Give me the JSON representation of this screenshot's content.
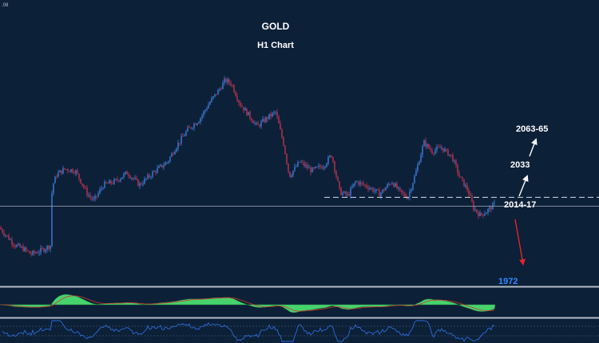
{
  "chart_data": {
    "type": "candlestick",
    "title": "GOLD",
    "subtitle": "H1 Chart",
    "corner_label": ".08",
    "ylim": [
      1960,
      2080
    ],
    "x_count": 310,
    "anchors": [
      [
        0,
        1990
      ],
      [
        12,
        1984
      ],
      [
        20,
        1980
      ],
      [
        30,
        1978
      ],
      [
        40,
        1975
      ],
      [
        52,
        1977
      ],
      [
        64,
        1980
      ],
      [
        66,
        2013
      ],
      [
        72,
        2020
      ],
      [
        82,
        2023
      ],
      [
        95,
        2022
      ],
      [
        110,
        2009
      ],
      [
        118,
        2005
      ],
      [
        130,
        2014
      ],
      [
        145,
        2016
      ],
      [
        160,
        2021
      ],
      [
        175,
        2014
      ],
      [
        195,
        2022
      ],
      [
        210,
        2027
      ],
      [
        220,
        2035
      ],
      [
        235,
        2045
      ],
      [
        250,
        2051
      ],
      [
        262,
        2060
      ],
      [
        275,
        2068
      ],
      [
        282,
        2073
      ],
      [
        290,
        2071
      ],
      [
        300,
        2060
      ],
      [
        312,
        2053
      ],
      [
        322,
        2047
      ],
      [
        335,
        2052
      ],
      [
        345,
        2055
      ],
      [
        355,
        2037
      ],
      [
        362,
        2019
      ],
      [
        375,
        2027
      ],
      [
        390,
        2022
      ],
      [
        405,
        2025
      ],
      [
        415,
        2031
      ],
      [
        425,
        2010
      ],
      [
        435,
        2008
      ],
      [
        445,
        2016
      ],
      [
        460,
        2013
      ],
      [
        475,
        2009
      ],
      [
        490,
        2016
      ],
      [
        500,
        2010
      ],
      [
        510,
        2007
      ],
      [
        520,
        2021
      ],
      [
        530,
        2038
      ],
      [
        540,
        2033
      ],
      [
        552,
        2035
      ],
      [
        565,
        2030
      ],
      [
        575,
        2018
      ],
      [
        585,
        2011
      ],
      [
        592,
        2001
      ],
      [
        600,
        1997
      ],
      [
        608,
        1999
      ],
      [
        618,
        2003
      ]
    ],
    "reference_lines": [
      {
        "type": "dashed",
        "value": 2007
      },
      {
        "type": "solid",
        "value": 2002
      }
    ],
    "levels": [
      {
        "label": "2063-65",
        "direction": "up"
      },
      {
        "label": "2033",
        "direction": "up"
      },
      {
        "label": "2014-17",
        "direction": "up"
      },
      {
        "label": "1972",
        "direction": "down"
      }
    ],
    "colors": {
      "background": "#0c2038",
      "up_candle": "#3f7fdc",
      "down_candle": "#c0344e",
      "text": "#ffffff",
      "down_target": "#2f8cff",
      "down_arrow": "#e5222b",
      "separator": "#b4bcc6",
      "macd_fill": "#46d36c",
      "macd_line": "#d0392e",
      "rsi_line": "#2d6bd6"
    },
    "grid": false
  }
}
